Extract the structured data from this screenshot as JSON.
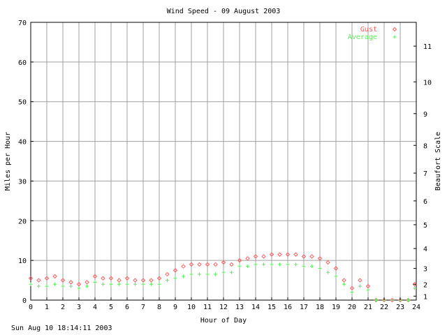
{
  "chart_data": {
    "type": "scatter",
    "title": "Wind Speed - 09 August 2003",
    "xlabel": "Hour of Day",
    "ylabel": "Miles per Hour",
    "y2label": "Beaufort Scale",
    "xlim": [
      0,
      24
    ],
    "ylim": [
      0,
      70
    ],
    "x_ticks": [
      "0",
      "1",
      "2",
      "3",
      "4",
      "5",
      "6",
      "7",
      "8",
      "9",
      "10",
      "11",
      "12",
      "13",
      "14",
      "15",
      "16",
      "17",
      "18",
      "19",
      "20",
      "21",
      "22",
      "23",
      "24"
    ],
    "y_ticks": [
      "0",
      "10",
      "20",
      "30",
      "40",
      "50",
      "60",
      "70"
    ],
    "grid": true,
    "legend_position": "top-right",
    "beaufort_ticks": [
      {
        "label": "1",
        "mph": 1
      },
      {
        "label": "2",
        "mph": 4
      },
      {
        "label": "3",
        "mph": 8
      },
      {
        "label": "4",
        "mph": 13
      },
      {
        "label": "5",
        "mph": 19
      },
      {
        "label": "6",
        "mph": 25
      },
      {
        "label": "7",
        "mph": 32
      },
      {
        "label": "8",
        "mph": 39
      },
      {
        "label": "9",
        "mph": 47
      },
      {
        "label": "10",
        "mph": 55
      },
      {
        "label": "11",
        "mph": 64
      }
    ],
    "series": [
      {
        "name": "Gust",
        "marker": "diamond",
        "color": "#ff5c5c",
        "x": [
          0.0,
          0.5,
          1.0,
          1.5,
          2.0,
          2.5,
          3.0,
          3.5,
          4.0,
          4.5,
          5.0,
          5.5,
          6.0,
          6.5,
          7.0,
          7.5,
          8.0,
          8.5,
          9.0,
          9.5,
          10.0,
          10.5,
          11.0,
          11.5,
          12.0,
          12.5,
          13.0,
          13.5,
          14.0,
          14.5,
          15.0,
          15.5,
          16.0,
          16.5,
          17.0,
          17.5,
          18.0,
          18.5,
          19.0,
          19.5,
          20.0,
          20.5,
          21.0,
          21.5,
          22.0,
          22.5,
          23.0,
          23.5,
          23.9
        ],
        "y": [
          5.5,
          5.0,
          5.5,
          6.0,
          5.0,
          4.5,
          4.0,
          4.5,
          6.0,
          5.5,
          5.5,
          5.0,
          5.5,
          5.0,
          5.0,
          5.0,
          5.5,
          6.5,
          7.5,
          8.5,
          9.0,
          9.0,
          9.0,
          9.0,
          9.5,
          9.0,
          10.0,
          10.5,
          11.0,
          11.0,
          11.5,
          11.5,
          11.5,
          11.5,
          11.0,
          11.0,
          10.5,
          9.5,
          8.0,
          5.0,
          3.0,
          5.0,
          3.5,
          0.0,
          0.0,
          0.0,
          0.0,
          0.0,
          4.0
        ]
      },
      {
        "name": "Average",
        "marker": "plus",
        "color": "#5cee5c",
        "x": [
          0.0,
          0.5,
          1.0,
          1.5,
          2.0,
          2.5,
          3.0,
          3.5,
          4.0,
          4.5,
          5.0,
          5.5,
          6.0,
          6.5,
          7.0,
          7.5,
          8.0,
          8.5,
          9.0,
          9.5,
          10.0,
          10.5,
          11.0,
          11.5,
          12.0,
          12.5,
          13.0,
          13.5,
          14.0,
          14.5,
          15.0,
          15.5,
          16.0,
          16.5,
          17.0,
          17.5,
          18.0,
          18.5,
          19.0,
          19.5,
          20.0,
          20.5,
          21.0,
          21.5,
          22.0,
          22.5,
          23.0,
          23.5,
          23.9
        ],
        "y": [
          4.0,
          3.5,
          3.5,
          4.0,
          3.5,
          3.5,
          3.0,
          3.5,
          4.5,
          4.0,
          4.0,
          4.0,
          4.0,
          4.0,
          4.0,
          4.0,
          4.0,
          5.0,
          5.5,
          6.0,
          6.5,
          6.5,
          6.5,
          6.5,
          7.0,
          7.0,
          8.5,
          8.5,
          9.0,
          9.0,
          9.0,
          9.0,
          9.0,
          9.0,
          8.5,
          8.5,
          8.0,
          7.0,
          6.0,
          4.0,
          2.0,
          3.5,
          2.5,
          0.0,
          0.0,
          0.0,
          0.0,
          0.0,
          3.0
        ]
      }
    ]
  },
  "footer": {
    "timestamp": "Sun Aug 10 18:14:11 2003"
  }
}
